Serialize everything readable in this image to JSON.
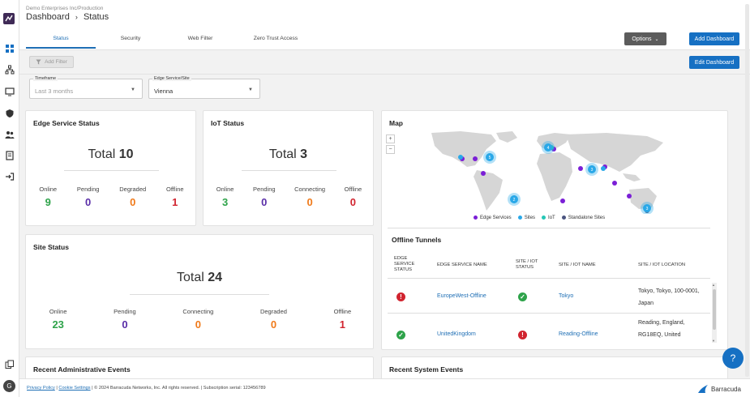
{
  "header": {
    "org_path": "Demo Enterprises Inc/Production",
    "breadcrumb_root": "Dashboard",
    "breadcrumb_sep": "›",
    "breadcrumb_current": "Status",
    "tabs": [
      {
        "label": "Status",
        "active": true
      },
      {
        "label": "Security",
        "active": false
      },
      {
        "label": "Web Filter",
        "active": false
      },
      {
        "label": "Zero Trust Access",
        "active": false
      }
    ],
    "options_label": "Options",
    "add_dashboard_label": "Add Dashboard",
    "edit_dashboard_label": "Edit Dashboard",
    "add_filter_label": "Add Filter"
  },
  "filters": {
    "timeframe": {
      "label": "Timeframe",
      "value": "Last 3 months"
    },
    "edge_site": {
      "label": "Edge Service/Site",
      "value": "Vienna"
    }
  },
  "edge_status": {
    "title": "Edge Service Status",
    "total_label": "Total",
    "total": "10",
    "stats": [
      {
        "label": "Online",
        "value": "9"
      },
      {
        "label": "Pending",
        "value": "0"
      },
      {
        "label": "Degraded",
        "value": "0"
      },
      {
        "label": "Offline",
        "value": "1"
      }
    ]
  },
  "iot_status": {
    "title": "IoT Status",
    "total_label": "Total",
    "total": "3",
    "stats": [
      {
        "label": "Online",
        "value": "3"
      },
      {
        "label": "Pending",
        "value": "0"
      },
      {
        "label": "Connecting",
        "value": "0"
      },
      {
        "label": "Offline",
        "value": "0"
      }
    ]
  },
  "site_status": {
    "title": "Site Status",
    "total_label": "Total",
    "total": "24",
    "stats": [
      {
        "label": "Online",
        "value": "23"
      },
      {
        "label": "Pending",
        "value": "0"
      },
      {
        "label": "Connecting",
        "value": "0"
      },
      {
        "label": "Degraded",
        "value": "0"
      },
      {
        "label": "Offline",
        "value": "1"
      }
    ]
  },
  "map": {
    "title": "Map",
    "zoom_in": "+",
    "zoom_out": "−",
    "cluster_labels": [
      "5",
      "4",
      "2",
      "3",
      "3"
    ],
    "legend": [
      {
        "label": "Edge Services",
        "color": "#7b1fd6"
      },
      {
        "label": "Sites",
        "color": "#29a8e8"
      },
      {
        "label": "IoT",
        "color": "#25c7b6"
      },
      {
        "label": "Standalone Sites",
        "color": "#4b5580"
      }
    ]
  },
  "offline_tunnels": {
    "title": "Offline Tunnels",
    "headers": [
      "EDGE SERVICE STATUS",
      "EDGE SERVICE NAME",
      "SITE / IOT STATUS",
      "SITE / IOT NAME",
      "SITE / IOT LOCATION"
    ],
    "rows": [
      {
        "edge_status": "error",
        "edge_name": "EuropeWest-Offline",
        "site_status": "ok",
        "site_name": "Tokyo",
        "location": "Tokyo, Tokyo, 100-0001, Japan"
      },
      {
        "edge_status": "ok",
        "edge_name": "UnitedKingdom",
        "site_status": "error",
        "site_name": "Reading-Offline",
        "location": "Reading, England, RG18EQ, United"
      }
    ]
  },
  "recent_admin": {
    "title": "Recent Administrative Events"
  },
  "recent_system": {
    "title": "Recent System Events"
  },
  "footer": {
    "privacy": "Privacy Policy",
    "cookie": "Cookie Settings",
    "copyright": "| © 2024 Barracuda Networks, Inc. All rights reserved. | Subscription serial: 123456789",
    "brand": "Barracuda"
  },
  "user_initial": "G",
  "help_icon": "?"
}
